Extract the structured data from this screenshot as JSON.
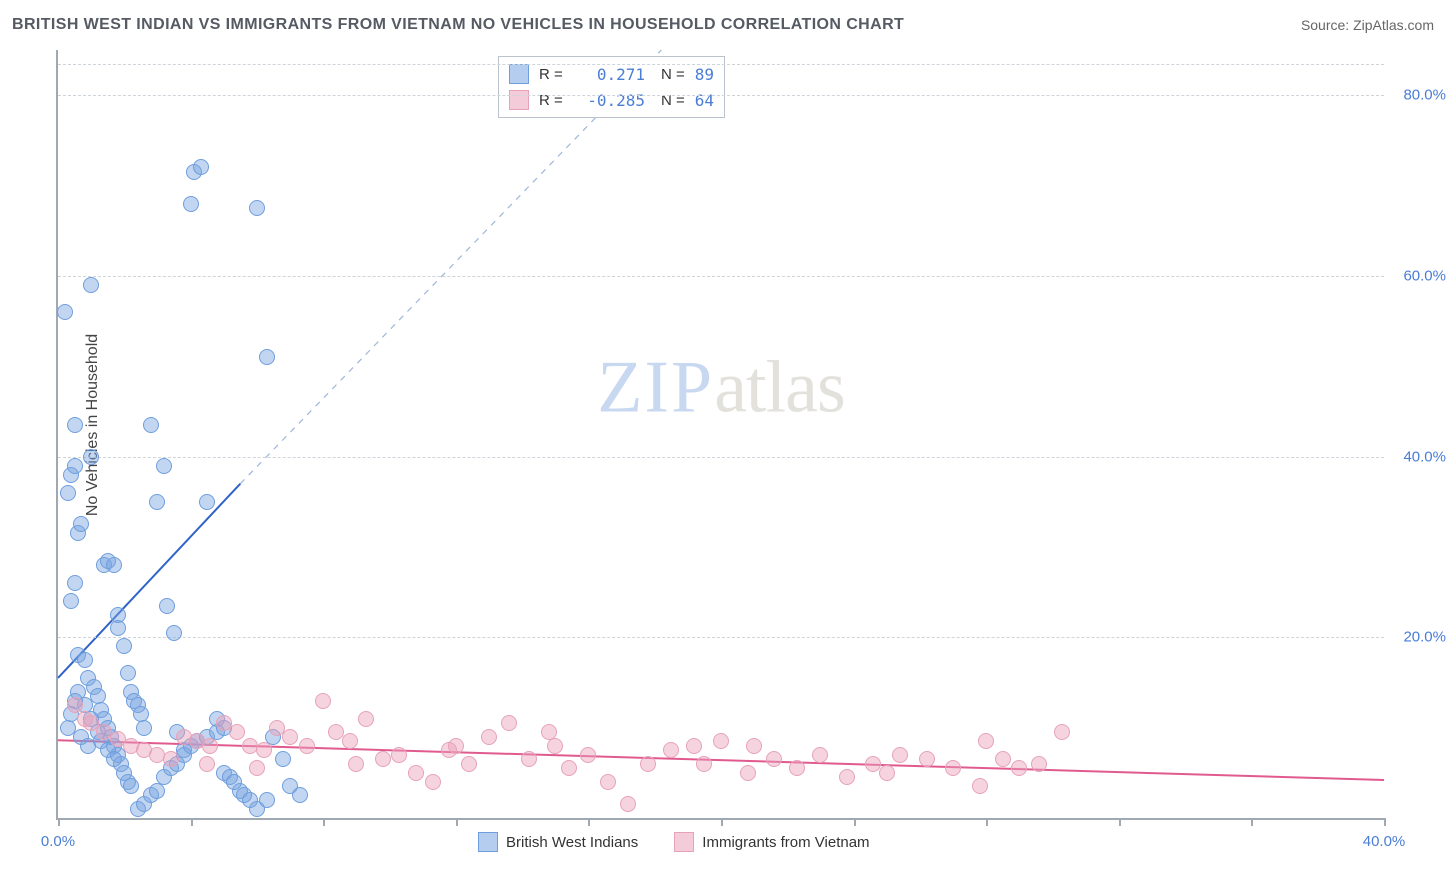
{
  "header": {
    "title": "BRITISH WEST INDIAN VS IMMIGRANTS FROM VIETNAM NO VEHICLES IN HOUSEHOLD CORRELATION CHART",
    "source_prefix": "Source: ",
    "source_name": "ZipAtlas.com"
  },
  "y_axis_label": "No Vehicles in Household",
  "watermark": {
    "left": "ZIP",
    "right": "atlas"
  },
  "chart": {
    "xlim": [
      0,
      40
    ],
    "ylim": [
      0,
      85
    ],
    "y_ticks": [
      {
        "v": 20,
        "label": "20.0%"
      },
      {
        "v": 40,
        "label": "40.0%"
      },
      {
        "v": 60,
        "label": "60.0%"
      },
      {
        "v": 80,
        "label": "80.0%"
      }
    ],
    "x_ticks": [
      0,
      4,
      8,
      12,
      16,
      20,
      24,
      28,
      32,
      36,
      40
    ],
    "x_tick_labels": {
      "0": "0.0%",
      "40": "40.0%"
    },
    "grid_color": "#cfd4da",
    "axis_color": "#a0a8b2",
    "point_radius": 8,
    "series": [
      {
        "key": "bwi",
        "label": "British West Indians",
        "fill": "rgba(120,165,225,0.45)",
        "stroke": "#6f9ede",
        "line_color": "#2f63c8",
        "line_width": 2,
        "dash_color": "#9fb6d9",
        "r_value": "0.271",
        "n_value": "89",
        "regression_solid": {
          "x1": 0,
          "y1": 15.5,
          "x2": 5.5,
          "y2": 37
        },
        "regression_dash": {
          "x1": 5.5,
          "y1": 37,
          "x2": 18.2,
          "y2": 85
        },
        "points": [
          [
            0.2,
            56
          ],
          [
            0.3,
            36
          ],
          [
            0.4,
            38
          ],
          [
            0.5,
            39
          ],
          [
            0.5,
            43.5
          ],
          [
            0.6,
            31.5
          ],
          [
            0.7,
            32.5
          ],
          [
            1.0,
            59
          ],
          [
            1.0,
            40
          ],
          [
            1.4,
            28
          ],
          [
            1.5,
            28.5
          ],
          [
            1.7,
            28
          ],
          [
            1.8,
            21
          ],
          [
            1.8,
            22.5
          ],
          [
            2.0,
            19
          ],
          [
            2.1,
            16
          ],
          [
            2.2,
            14
          ],
          [
            2.3,
            13
          ],
          [
            2.4,
            12.5
          ],
          [
            2.5,
            11.5
          ],
          [
            2.6,
            10
          ],
          [
            2.8,
            43.5
          ],
          [
            3.0,
            35
          ],
          [
            3.2,
            39
          ],
          [
            3.3,
            23.5
          ],
          [
            3.5,
            20.5
          ],
          [
            3.6,
            9.5
          ],
          [
            3.8,
            7.5
          ],
          [
            4.0,
            68
          ],
          [
            4.1,
            71.5
          ],
          [
            4.3,
            72
          ],
          [
            4.5,
            35
          ],
          [
            4.8,
            11
          ],
          [
            5.0,
            5
          ],
          [
            5.2,
            4.5
          ],
          [
            5.5,
            3.0
          ],
          [
            5.8,
            2.0
          ],
          [
            6.0,
            67.5
          ],
          [
            6.3,
            51
          ],
          [
            6.5,
            9.0
          ],
          [
            6.8,
            6.5
          ],
          [
            7.0,
            3.5
          ],
          [
            7.3,
            2.5
          ],
          [
            0.6,
            18
          ],
          [
            0.8,
            17.5
          ],
          [
            0.9,
            15.5
          ],
          [
            1.1,
            14.5
          ],
          [
            1.2,
            13.5
          ],
          [
            1.3,
            12.0
          ],
          [
            1.4,
            11.0
          ],
          [
            1.5,
            10.0
          ],
          [
            1.6,
            9.0
          ],
          [
            1.7,
            8.0
          ],
          [
            1.8,
            7.0
          ],
          [
            1.9,
            6.0
          ],
          [
            2.0,
            5.0
          ],
          [
            2.1,
            4.0
          ],
          [
            2.2,
            3.5
          ],
          [
            2.4,
            1.0
          ],
          [
            2.6,
            1.5
          ],
          [
            2.8,
            2.5
          ],
          [
            3.0,
            3.0
          ],
          [
            3.2,
            4.5
          ],
          [
            3.4,
            5.5
          ],
          [
            3.6,
            6.0
          ],
          [
            3.8,
            7.0
          ],
          [
            4.0,
            8.0
          ],
          [
            4.2,
            8.5
          ],
          [
            4.5,
            9.0
          ],
          [
            4.8,
            9.5
          ],
          [
            5.0,
            10.0
          ],
          [
            5.3,
            4.0
          ],
          [
            5.6,
            2.5
          ],
          [
            6.0,
            1.0
          ],
          [
            6.3,
            2.0
          ],
          [
            0.4,
            24
          ],
          [
            0.5,
            26
          ],
          [
            0.6,
            14
          ],
          [
            0.8,
            12.5
          ],
          [
            1.0,
            11.0
          ],
          [
            1.2,
            9.5
          ],
          [
            1.3,
            8.5
          ],
          [
            1.5,
            7.5
          ],
          [
            1.7,
            6.5
          ],
          [
            0.3,
            10
          ],
          [
            0.4,
            11.5
          ],
          [
            0.5,
            13
          ],
          [
            0.7,
            9
          ],
          [
            0.9,
            8
          ]
        ]
      },
      {
        "key": "viet",
        "label": "Immigrants from Vietnam",
        "fill": "rgba(235,160,185,0.45)",
        "stroke": "#e6a2b9",
        "line_color": "#e05a8f",
        "line_width": 2,
        "r_value": "-0.285",
        "n_value": "64",
        "regression_solid": {
          "x1": 0,
          "y1": 8.6,
          "x2": 40,
          "y2": 4.2
        },
        "points": [
          [
            0.5,
            12.5
          ],
          [
            0.8,
            11
          ],
          [
            1.0,
            10.5
          ],
          [
            1.4,
            9.5
          ],
          [
            1.8,
            8.8
          ],
          [
            2.2,
            8.0
          ],
          [
            2.6,
            7.5
          ],
          [
            3.0,
            7.0
          ],
          [
            3.4,
            6.5
          ],
          [
            3.8,
            9.0
          ],
          [
            4.2,
            8.5
          ],
          [
            4.6,
            8.0
          ],
          [
            5.0,
            10.5
          ],
          [
            5.4,
            9.5
          ],
          [
            5.8,
            8.0
          ],
          [
            6.2,
            7.5
          ],
          [
            6.6,
            10.0
          ],
          [
            7.0,
            9.0
          ],
          [
            7.5,
            8.0
          ],
          [
            8.0,
            13.0
          ],
          [
            8.4,
            9.5
          ],
          [
            8.8,
            8.5
          ],
          [
            9.3,
            11.0
          ],
          [
            9.8,
            6.5
          ],
          [
            10.3,
            7.0
          ],
          [
            10.8,
            5.0
          ],
          [
            11.3,
            4.0
          ],
          [
            11.8,
            7.5
          ],
          [
            12.4,
            6.0
          ],
          [
            13.0,
            9.0
          ],
          [
            13.6,
            10.5
          ],
          [
            14.2,
            6.5
          ],
          [
            14.8,
            9.5
          ],
          [
            15.4,
            5.5
          ],
          [
            16.0,
            7.0
          ],
          [
            16.6,
            4.0
          ],
          [
            17.2,
            1.5
          ],
          [
            17.8,
            6.0
          ],
          [
            18.5,
            7.5
          ],
          [
            19.2,
            8.0
          ],
          [
            20.0,
            8.5
          ],
          [
            20.8,
            5.0
          ],
          [
            21.6,
            6.5
          ],
          [
            22.3,
            5.5
          ],
          [
            23.0,
            7.0
          ],
          [
            23.8,
            4.5
          ],
          [
            24.6,
            6.0
          ],
          [
            25.4,
            7.0
          ],
          [
            26.2,
            6.5
          ],
          [
            27.0,
            5.5
          ],
          [
            27.8,
            3.5
          ],
          [
            28.5,
            6.5
          ],
          [
            29.0,
            5.5
          ],
          [
            29.6,
            6.0
          ],
          [
            30.3,
            9.5
          ],
          [
            28.0,
            8.5
          ],
          [
            25.0,
            5.0
          ],
          [
            21.0,
            8.0
          ],
          [
            19.5,
            6.0
          ],
          [
            15.0,
            8.0
          ],
          [
            12.0,
            8.0
          ],
          [
            9.0,
            6.0
          ],
          [
            6.0,
            5.5
          ],
          [
            4.5,
            6.0
          ]
        ]
      }
    ]
  },
  "legend_bottom": [
    {
      "swatch_fill": "rgba(120,165,225,0.55)",
      "swatch_stroke": "#6f9ede",
      "label": "British West Indians"
    },
    {
      "swatch_fill": "rgba(235,160,185,0.55)",
      "swatch_stroke": "#e6a2b9",
      "label": "Immigrants from Vietnam"
    }
  ]
}
